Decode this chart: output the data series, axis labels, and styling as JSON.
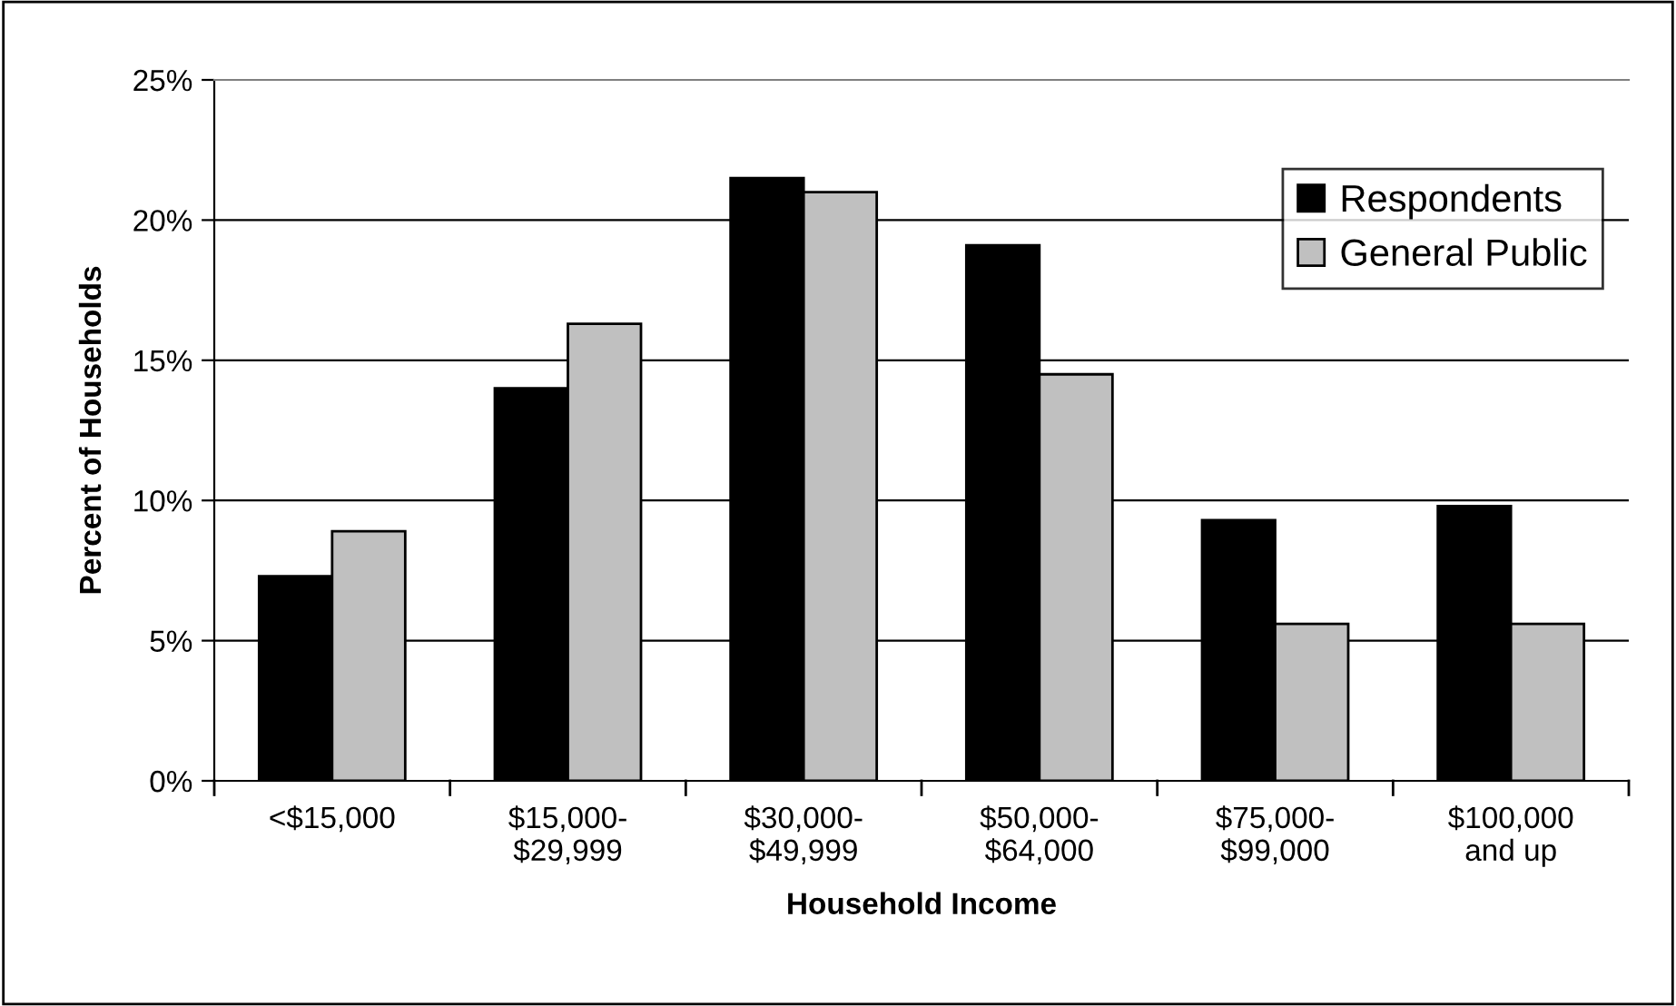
{
  "chart_data": {
    "type": "bar",
    "xlabel": "Household Income",
    "ylabel": "Percent of Households",
    "categories": [
      "<$15,000",
      "$15,000-\n$29,999",
      "$30,000-\n$49,999",
      "$50,000-\n$64,000",
      "$75,000-\n$99,000",
      "$100,000\nand up"
    ],
    "series": [
      {
        "name": "Respondents",
        "color": "#000000",
        "values": [
          7.3,
          14.0,
          21.5,
          19.1,
          9.3,
          9.8
        ]
      },
      {
        "name": "General Public",
        "color": "#c0c0c0",
        "values": [
          8.9,
          16.3,
          21.0,
          14.5,
          5.6,
          5.6
        ]
      }
    ],
    "ylim": [
      0,
      25
    ],
    "yticks": [
      {
        "value": 0,
        "label": "0%"
      },
      {
        "value": 5,
        "label": "5%"
      },
      {
        "value": 10,
        "label": "10%"
      },
      {
        "value": 15,
        "label": "15%"
      },
      {
        "value": 20,
        "label": "20%"
      },
      {
        "value": 25,
        "label": "25%"
      }
    ],
    "grid": "y",
    "legend": "top right"
  }
}
